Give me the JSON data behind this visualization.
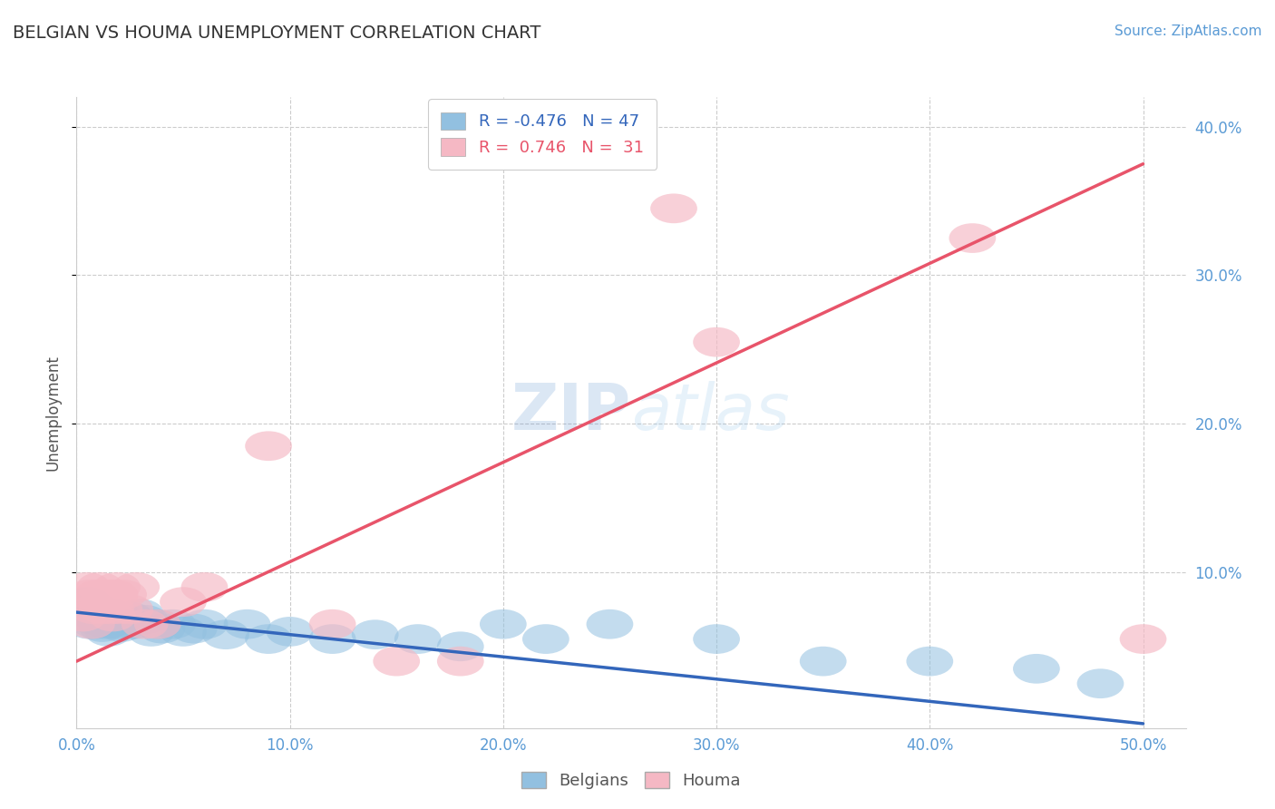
{
  "title": "BELGIAN VS HOUMA UNEMPLOYMENT CORRELATION CHART",
  "source_text": "Source: ZipAtlas.com",
  "ylabel": "Unemployment",
  "xlim": [
    0.0,
    0.52
  ],
  "ylim": [
    -0.005,
    0.42
  ],
  "xtick_vals": [
    0.0,
    0.1,
    0.2,
    0.3,
    0.4,
    0.5
  ],
  "ytick_vals_right": [
    0.1,
    0.2,
    0.3,
    0.4
  ],
  "grid_color": "#cccccc",
  "background_color": "#ffffff",
  "title_color": "#333333",
  "legend_R_blue": "-0.476",
  "legend_N_blue": "47",
  "legend_R_pink": "0.746",
  "legend_N_pink": "31",
  "blue_color": "#92C0E0",
  "pink_color": "#F5B8C4",
  "blue_line_color": "#3366BB",
  "pink_line_color": "#E8546A",
  "watermark_zip": "ZIP",
  "watermark_atlas": "atlas",
  "blue_line_x0": 0.0,
  "blue_line_y0": 0.073,
  "blue_line_x1": 0.5,
  "blue_line_y1": -0.002,
  "pink_line_x0": 0.0,
  "pink_line_y0": 0.04,
  "pink_line_x1": 0.5,
  "pink_line_y1": 0.375,
  "blue_scatter_x": [
    0.002,
    0.004,
    0.005,
    0.006,
    0.007,
    0.008,
    0.009,
    0.01,
    0.011,
    0.012,
    0.013,
    0.014,
    0.015,
    0.016,
    0.017,
    0.018,
    0.019,
    0.02,
    0.021,
    0.022,
    0.025,
    0.027,
    0.03,
    0.032,
    0.035,
    0.038,
    0.04,
    0.045,
    0.05,
    0.055,
    0.06,
    0.07,
    0.08,
    0.09,
    0.1,
    0.12,
    0.14,
    0.16,
    0.18,
    0.2,
    0.22,
    0.25,
    0.3,
    0.35,
    0.4,
    0.45,
    0.48
  ],
  "blue_scatter_y": [
    0.075,
    0.07,
    0.08,
    0.065,
    0.072,
    0.068,
    0.065,
    0.075,
    0.07,
    0.063,
    0.068,
    0.065,
    0.06,
    0.072,
    0.068,
    0.07,
    0.065,
    0.07,
    0.063,
    0.068,
    0.07,
    0.065,
    0.072,
    0.068,
    0.06,
    0.065,
    0.062,
    0.065,
    0.06,
    0.062,
    0.065,
    0.058,
    0.065,
    0.055,
    0.06,
    0.055,
    0.058,
    0.055,
    0.05,
    0.065,
    0.055,
    0.065,
    0.055,
    0.04,
    0.04,
    0.035,
    0.025
  ],
  "pink_scatter_x": [
    0.003,
    0.005,
    0.006,
    0.007,
    0.008,
    0.009,
    0.01,
    0.011,
    0.012,
    0.013,
    0.015,
    0.016,
    0.017,
    0.018,
    0.019,
    0.02,
    0.022,
    0.025,
    0.028,
    0.032,
    0.038,
    0.05,
    0.06,
    0.09,
    0.12,
    0.15,
    0.18,
    0.28,
    0.3,
    0.42,
    0.5
  ],
  "pink_scatter_y": [
    0.07,
    0.09,
    0.085,
    0.065,
    0.075,
    0.08,
    0.085,
    0.09,
    0.075,
    0.08,
    0.085,
    0.075,
    0.07,
    0.085,
    0.09,
    0.075,
    0.085,
    0.075,
    0.09,
    0.065,
    0.065,
    0.08,
    0.09,
    0.185,
    0.065,
    0.04,
    0.04,
    0.345,
    0.255,
    0.325,
    0.055
  ]
}
